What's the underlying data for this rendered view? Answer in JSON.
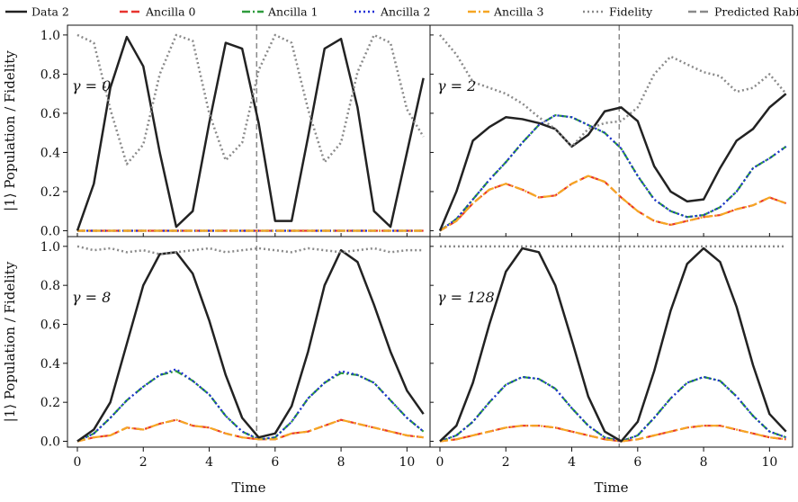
{
  "chart_data": {
    "type": "line",
    "xlabel": "Time",
    "ylabel": "|1⟩ Population / Fidelity",
    "xlim": [
      -0.3,
      10.7
    ],
    "ylim": [
      -0.03,
      1.05
    ],
    "xticks": [
      "0",
      "2",
      "4",
      "6",
      "8",
      "10"
    ],
    "yticks": [
      "0.0",
      "0.2",
      "0.4",
      "0.6",
      "0.8",
      "1.0"
    ],
    "grid": false,
    "legend_position": "top",
    "predicted_rabi_period": 5.44,
    "legend": [
      {
        "name": "Data 2",
        "color": "#222222",
        "style": "solid"
      },
      {
        "name": "Ancilla 0",
        "color": "#e8332f",
        "style": "dashed"
      },
      {
        "name": "Ancilla 1",
        "color": "#2e9b3c",
        "style": "dashdot"
      },
      {
        "name": "Ancilla 2",
        "color": "#1f2fd6",
        "style": "dotted"
      },
      {
        "name": "Ancilla 3",
        "color": "#f5a623",
        "style": "dashdot"
      },
      {
        "name": "Fidelity",
        "color": "#8a8a8a",
        "style": "dotted"
      },
      {
        "name": "Predicted Rabi period",
        "color": "#8a8a8a",
        "style": "dashed"
      }
    ],
    "panels": [
      {
        "label": "γ = 0",
        "x": [
          0,
          0.5,
          1.0,
          1.5,
          2.0,
          2.5,
          3.0,
          3.5,
          4.0,
          4.5,
          5.0,
          5.5,
          6.0,
          6.5,
          7.0,
          7.5,
          8.0,
          8.5,
          9.0,
          9.5,
          10.0,
          10.5
        ],
        "series": [
          {
            "name": "Data 2",
            "values": [
              0.0,
              0.24,
              0.73,
              0.99,
              0.84,
              0.4,
              0.02,
              0.1,
              0.55,
              0.96,
              0.93,
              0.55,
              0.05,
              0.05,
              0.48,
              0.93,
              0.98,
              0.63,
              0.1,
              0.02,
              0.4,
              0.78
            ]
          },
          {
            "name": "Ancilla 0",
            "values": [
              0,
              0,
              0,
              0,
              0,
              0,
              0,
              0,
              0,
              0,
              0,
              0,
              0,
              0,
              0,
              0,
              0,
              0,
              0,
              0,
              0,
              0
            ]
          },
          {
            "name": "Ancilla 1",
            "values": [
              0,
              0,
              0,
              0,
              0,
              0,
              0,
              0,
              0,
              0,
              0,
              0,
              0,
              0,
              0,
              0,
              0,
              0,
              0,
              0,
              0,
              0
            ]
          },
          {
            "name": "Ancilla 2",
            "values": [
              0,
              0,
              0,
              0,
              0,
              0,
              0,
              0,
              0,
              0,
              0,
              0,
              0,
              0,
              0,
              0,
              0,
              0,
              0,
              0,
              0,
              0
            ]
          },
          {
            "name": "Ancilla 3",
            "values": [
              0,
              0,
              0,
              0,
              0,
              0,
              0,
              0,
              0,
              0,
              0,
              0,
              0,
              0,
              0,
              0,
              0,
              0,
              0,
              0,
              0,
              0
            ]
          },
          {
            "name": "Fidelity",
            "values": [
              1.0,
              0.96,
              0.62,
              0.34,
              0.44,
              0.8,
              1.0,
              0.97,
              0.6,
              0.36,
              0.45,
              0.82,
              1.0,
              0.96,
              0.62,
              0.35,
              0.45,
              0.81,
              1.0,
              0.96,
              0.62,
              0.48
            ]
          }
        ]
      },
      {
        "label": "γ = 2",
        "x": [
          0,
          0.5,
          1.0,
          1.5,
          2.0,
          2.5,
          3.0,
          3.5,
          4.0,
          4.5,
          5.0,
          5.5,
          6.0,
          6.5,
          7.0,
          7.5,
          8.0,
          8.5,
          9.0,
          9.5,
          10.0,
          10.5
        ],
        "series": [
          {
            "name": "Data 2",
            "values": [
              0.0,
              0.2,
              0.46,
              0.53,
              0.58,
              0.57,
              0.55,
              0.52,
              0.43,
              0.49,
              0.61,
              0.63,
              0.56,
              0.33,
              0.2,
              0.15,
              0.16,
              0.32,
              0.46,
              0.52,
              0.63,
              0.7
            ]
          },
          {
            "name": "Ancilla 0",
            "values": [
              0.0,
              0.05,
              0.14,
              0.21,
              0.24,
              0.21,
              0.17,
              0.18,
              0.24,
              0.28,
              0.25,
              0.17,
              0.1,
              0.05,
              0.03,
              0.05,
              0.07,
              0.08,
              0.11,
              0.13,
              0.17,
              0.14
            ]
          },
          {
            "name": "Ancilla 1",
            "values": [
              0.0,
              0.06,
              0.16,
              0.26,
              0.35,
              0.45,
              0.54,
              0.59,
              0.58,
              0.54,
              0.5,
              0.42,
              0.28,
              0.16,
              0.1,
              0.07,
              0.08,
              0.12,
              0.2,
              0.32,
              0.37,
              0.43
            ]
          },
          {
            "name": "Ancilla 2",
            "values": [
              0.0,
              0.06,
              0.16,
              0.26,
              0.35,
              0.45,
              0.54,
              0.59,
              0.58,
              0.54,
              0.5,
              0.42,
              0.28,
              0.16,
              0.1,
              0.07,
              0.08,
              0.12,
              0.2,
              0.32,
              0.37,
              0.43
            ]
          },
          {
            "name": "Ancilla 3",
            "values": [
              0.0,
              0.05,
              0.14,
              0.21,
              0.24,
              0.21,
              0.17,
              0.18,
              0.24,
              0.28,
              0.25,
              0.17,
              0.1,
              0.05,
              0.03,
              0.05,
              0.07,
              0.08,
              0.11,
              0.13,
              0.17,
              0.14
            ]
          },
          {
            "name": "Fidelity",
            "values": [
              1.0,
              0.9,
              0.76,
              0.73,
              0.7,
              0.65,
              0.58,
              0.52,
              0.43,
              0.52,
              0.55,
              0.56,
              0.63,
              0.8,
              0.89,
              0.85,
              0.81,
              0.79,
              0.71,
              0.73,
              0.8,
              0.7
            ]
          }
        ]
      },
      {
        "label": "γ = 8",
        "x": [
          0,
          0.5,
          1.0,
          1.5,
          2.0,
          2.5,
          3.0,
          3.5,
          4.0,
          4.5,
          5.0,
          5.5,
          6.0,
          6.5,
          7.0,
          7.5,
          8.0,
          8.5,
          9.0,
          9.5,
          10.0,
          10.5
        ],
        "series": [
          {
            "name": "Data 2",
            "values": [
              0.0,
              0.06,
              0.2,
              0.5,
              0.8,
              0.96,
              0.97,
              0.86,
              0.62,
              0.34,
              0.12,
              0.02,
              0.04,
              0.18,
              0.46,
              0.8,
              0.98,
              0.92,
              0.7,
              0.46,
              0.26,
              0.14
            ]
          },
          {
            "name": "Ancilla 0",
            "values": [
              0.0,
              0.02,
              0.03,
              0.07,
              0.06,
              0.09,
              0.11,
              0.08,
              0.07,
              0.04,
              0.02,
              0.01,
              0.01,
              0.04,
              0.05,
              0.08,
              0.11,
              0.09,
              0.07,
              0.05,
              0.03,
              0.02
            ]
          },
          {
            "name": "Ancilla 1",
            "values": [
              0.0,
              0.04,
              0.12,
              0.21,
              0.28,
              0.34,
              0.36,
              0.31,
              0.24,
              0.13,
              0.05,
              0.01,
              0.02,
              0.1,
              0.22,
              0.3,
              0.35,
              0.34,
              0.3,
              0.21,
              0.12,
              0.05
            ]
          },
          {
            "name": "Ancilla 2",
            "values": [
              0.0,
              0.04,
              0.12,
              0.21,
              0.28,
              0.34,
              0.37,
              0.31,
              0.24,
              0.13,
              0.05,
              0.01,
              0.02,
              0.1,
              0.22,
              0.3,
              0.36,
              0.34,
              0.3,
              0.21,
              0.12,
              0.05
            ]
          },
          {
            "name": "Ancilla 3",
            "values": [
              0.0,
              0.02,
              0.03,
              0.07,
              0.06,
              0.09,
              0.11,
              0.08,
              0.07,
              0.04,
              0.02,
              0.01,
              0.01,
              0.04,
              0.05,
              0.08,
              0.11,
              0.09,
              0.07,
              0.05,
              0.03,
              0.02
            ]
          },
          {
            "name": "Fidelity",
            "values": [
              1.0,
              0.98,
              0.99,
              0.97,
              0.98,
              0.96,
              0.97,
              0.98,
              0.99,
              0.97,
              0.98,
              0.99,
              0.98,
              0.97,
              0.99,
              0.98,
              0.97,
              0.98,
              0.99,
              0.97,
              0.98,
              0.98
            ]
          }
        ]
      },
      {
        "label": "γ = 128",
        "x": [
          0,
          0.5,
          1.0,
          1.5,
          2.0,
          2.5,
          3.0,
          3.5,
          4.0,
          4.5,
          5.0,
          5.5,
          6.0,
          6.5,
          7.0,
          7.5,
          8.0,
          8.5,
          9.0,
          9.5,
          10.0,
          10.5
        ],
        "series": [
          {
            "name": "Data 2",
            "values": [
              0.0,
              0.08,
              0.3,
              0.6,
              0.87,
              0.99,
              0.97,
              0.8,
              0.52,
              0.23,
              0.05,
              0.0,
              0.1,
              0.36,
              0.67,
              0.91,
              0.99,
              0.92,
              0.69,
              0.39,
              0.14,
              0.05
            ]
          },
          {
            "name": "Ancilla 0",
            "values": [
              0.0,
              0.01,
              0.03,
              0.05,
              0.07,
              0.08,
              0.08,
              0.07,
              0.05,
              0.03,
              0.01,
              0.0,
              0.01,
              0.03,
              0.05,
              0.07,
              0.08,
              0.08,
              0.06,
              0.04,
              0.02,
              0.01
            ]
          },
          {
            "name": "Ancilla 1",
            "values": [
              0.0,
              0.03,
              0.1,
              0.2,
              0.29,
              0.33,
              0.32,
              0.27,
              0.17,
              0.08,
              0.02,
              0.0,
              0.03,
              0.12,
              0.22,
              0.3,
              0.33,
              0.31,
              0.23,
              0.13,
              0.05,
              0.02
            ]
          },
          {
            "name": "Ancilla 2",
            "values": [
              0.0,
              0.03,
              0.1,
              0.2,
              0.29,
              0.33,
              0.32,
              0.27,
              0.17,
              0.08,
              0.02,
              0.0,
              0.03,
              0.12,
              0.22,
              0.3,
              0.33,
              0.31,
              0.23,
              0.13,
              0.05,
              0.02
            ]
          },
          {
            "name": "Ancilla 3",
            "values": [
              0.0,
              0.01,
              0.03,
              0.05,
              0.07,
              0.08,
              0.08,
              0.07,
              0.05,
              0.03,
              0.01,
              0.0,
              0.01,
              0.03,
              0.05,
              0.07,
              0.08,
              0.08,
              0.06,
              0.04,
              0.02,
              0.01
            ]
          },
          {
            "name": "Fidelity",
            "values": [
              1.0,
              1.0,
              1.0,
              1.0,
              1.0,
              1.0,
              1.0,
              1.0,
              1.0,
              1.0,
              1.0,
              1.0,
              1.0,
              1.0,
              1.0,
              1.0,
              1.0,
              1.0,
              1.0,
              1.0,
              1.0,
              1.0
            ]
          }
        ]
      }
    ]
  }
}
